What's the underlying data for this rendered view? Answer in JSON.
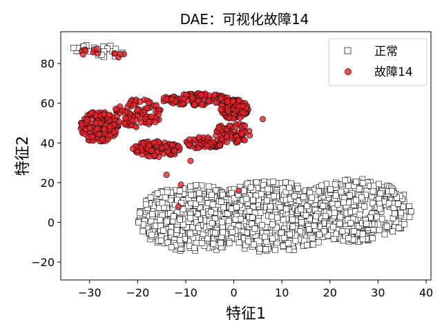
{
  "chart_data": {
    "type": "scatter",
    "title": "DAE：可视化故障14",
    "xlabel": "特征1",
    "ylabel": "特征2",
    "xlim": [
      -36,
      41
    ],
    "ylim": [
      -29,
      96
    ],
    "xticks": [
      -30,
      -20,
      -10,
      0,
      10,
      20,
      30,
      40
    ],
    "yticks": [
      -20,
      0,
      20,
      40,
      60,
      80
    ],
    "xtick_labels": [
      "−30",
      "−20",
      "−10",
      "0",
      "10",
      "20",
      "30",
      "40"
    ],
    "ytick_labels": [
      "−20",
      "0",
      "20",
      "40",
      "60",
      "80"
    ],
    "grid": false,
    "legend_position": "top-right",
    "series": [
      {
        "name": "正常",
        "marker": "square",
        "color": "#ffffff",
        "edge_color": "#000000",
        "clusters": [
          {
            "cx": -31.5,
            "cy": 88,
            "rx": 2.5,
            "ry": 2.5,
            "n": 10
          },
          {
            "cx": -26,
            "cy": 86,
            "rx": 3,
            "ry": 3,
            "n": 14
          },
          {
            "cx": -8,
            "cy": 2,
            "rx": 12,
            "ry": 17,
            "n": 420
          },
          {
            "cx": 8,
            "cy": 3,
            "rx": 14,
            "ry": 18,
            "n": 480
          },
          {
            "cx": 25,
            "cy": 6,
            "rx": 12,
            "ry": 16,
            "n": 420
          }
        ]
      },
      {
        "name": "故障14",
        "marker": "circle",
        "color": "#e8222a",
        "edge_color": "#000000",
        "clusters": [
          {
            "cx": -30,
            "cy": 86,
            "rx": 2,
            "ry": 2.5,
            "n": 8
          },
          {
            "cx": -24,
            "cy": 84,
            "rx": 1.5,
            "ry": 1.5,
            "n": 5
          },
          {
            "cx": -28,
            "cy": 48,
            "rx": 4,
            "ry": 8,
            "n": 150
          },
          {
            "cx": -20,
            "cy": 55,
            "rx": 5,
            "ry": 7,
            "n": 90
          },
          {
            "cx": -16,
            "cy": 37,
            "rx": 5,
            "ry": 4,
            "n": 110
          },
          {
            "cx": -8,
            "cy": 62,
            "rx": 7,
            "ry": 3,
            "n": 110
          },
          {
            "cx": -6,
            "cy": 40,
            "rx": 4,
            "ry": 3,
            "n": 60
          },
          {
            "cx": 0,
            "cy": 57,
            "rx": 3,
            "ry": 5,
            "n": 110
          },
          {
            "cx": 0,
            "cy": 45,
            "rx": 4,
            "ry": 5,
            "n": 70
          }
        ],
        "outliers": [
          [
            -14,
            24
          ],
          [
            -11,
            19
          ],
          [
            -11.5,
            8
          ],
          [
            1,
            16
          ],
          [
            6,
            52
          ],
          [
            -9,
            31
          ]
        ]
      }
    ]
  }
}
